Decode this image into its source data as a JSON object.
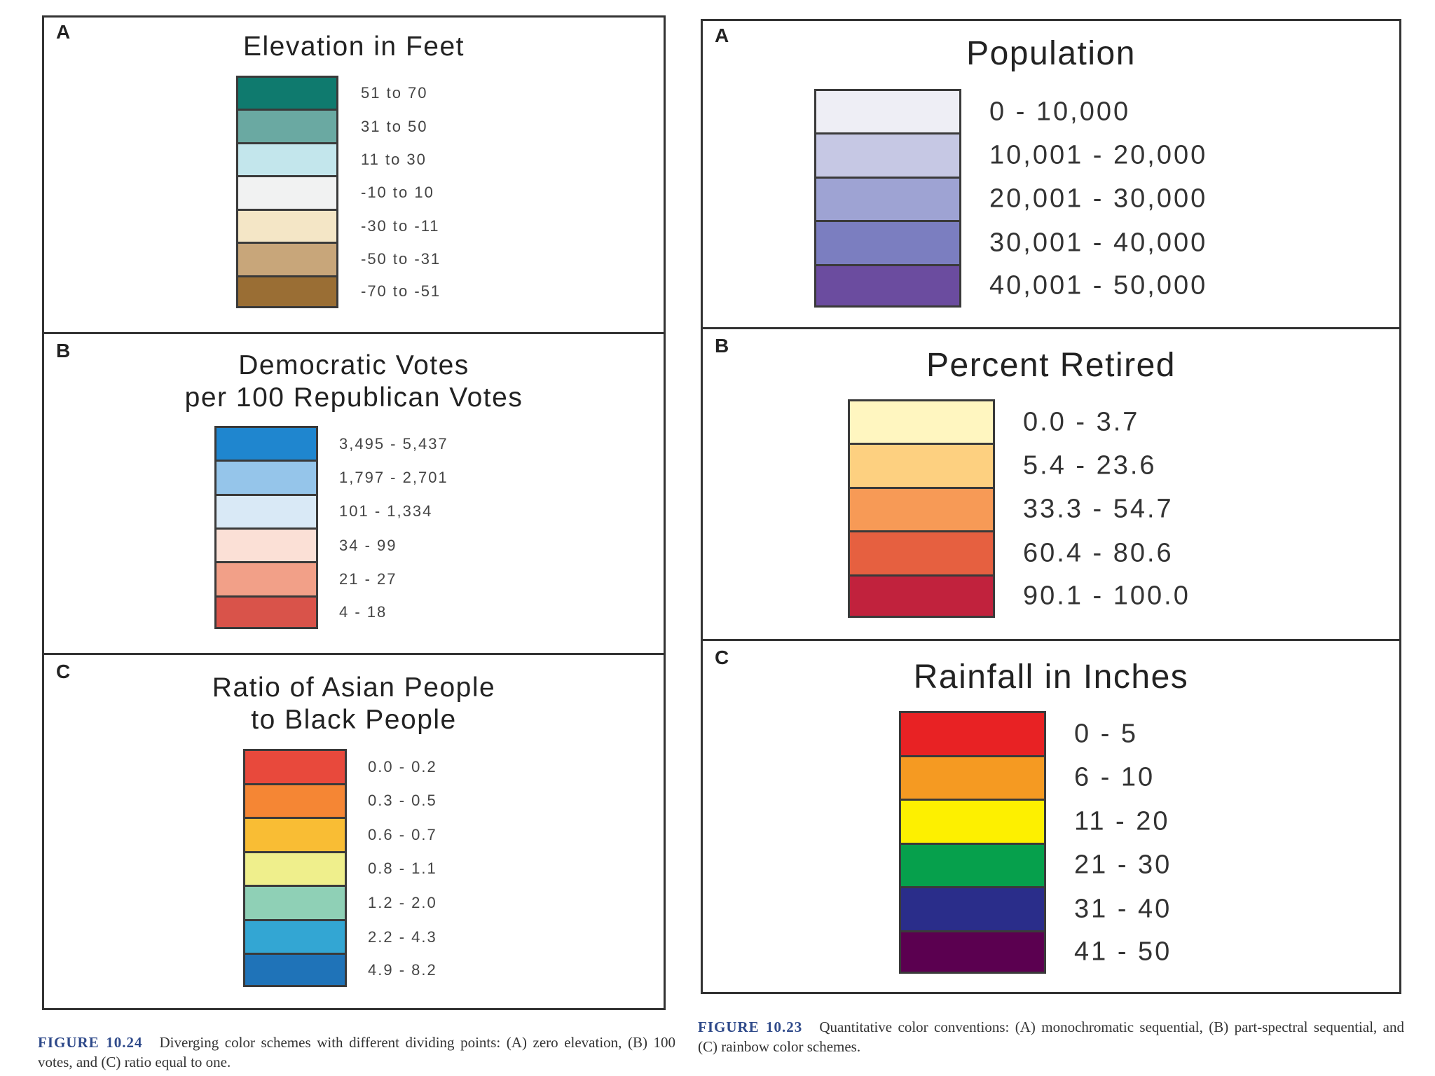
{
  "left_figure": {
    "panels": [
      {
        "letter": "A",
        "title": "Elevation in Feet",
        "classes": [
          {
            "label": "51 to 70",
            "color": "#0f7a6e"
          },
          {
            "label": "31 to 50",
            "color": "#6aa9a2"
          },
          {
            "label": "11 to 30",
            "color": "#c3e6ec"
          },
          {
            "label": "-10 to 10",
            "color": "#f1f2f2"
          },
          {
            "label": "-30 to -11",
            "color": "#f4e6c6"
          },
          {
            "label": "-50 to -31",
            "color": "#c8a67a"
          },
          {
            "label": "-70 to -51",
            "color": "#9a6e34"
          }
        ]
      },
      {
        "letter": "B",
        "title": "Democratic Votes\nper 100 Republican Votes",
        "classes": [
          {
            "label": "3,495 - 5,437",
            "color": "#1f86cf"
          },
          {
            "label": "1,797 - 2,701",
            "color": "#95c5ea"
          },
          {
            "label": "101 - 1,334",
            "color": "#d9e9f6"
          },
          {
            "label": "34 - 99",
            "color": "#fbe0d6"
          },
          {
            "label": "21 - 27",
            "color": "#f2a088"
          },
          {
            "label": "4 - 18",
            "color": "#d9534a"
          }
        ]
      },
      {
        "letter": "C",
        "title": "Ratio of Asian People\nto Black People",
        "classes": [
          {
            "label": "0.0 - 0.2",
            "color": "#e8493c"
          },
          {
            "label": "0.3 - 0.5",
            "color": "#f58634"
          },
          {
            "label": "0.6 - 0.7",
            "color": "#f9bd34"
          },
          {
            "label": "0.8 - 1.1",
            "color": "#efef8c"
          },
          {
            "label": "1.2 - 2.0",
            "color": "#8fd0b6"
          },
          {
            "label": "2.2 - 4.3",
            "color": "#33a6d3"
          },
          {
            "label": "4.9 - 8.2",
            "color": "#1f73b8"
          }
        ]
      }
    ],
    "caption": {
      "label": "FIGURE 10.24",
      "text": "Diverging color schemes with different dividing points: (A) zero elevation, (B) 100 votes, and (C) ratio equal to one."
    }
  },
  "right_figure": {
    "panels": [
      {
        "letter": "A",
        "title": "Population",
        "classes": [
          {
            "label": "0 - 10,000",
            "color": "#eeeef5"
          },
          {
            "label": "10,001 - 20,000",
            "color": "#c6c8e4"
          },
          {
            "label": "20,001 - 30,000",
            "color": "#9ea3d3"
          },
          {
            "label": "30,001 - 40,000",
            "color": "#7b7ec0"
          },
          {
            "label": "40,001 - 50,000",
            "color": "#6b4c9f"
          }
        ]
      },
      {
        "letter": "B",
        "title": "Percent Retired",
        "classes": [
          {
            "label": "0.0 - 3.7",
            "color": "#fff6c0"
          },
          {
            "label": "5.4 - 23.6",
            "color": "#fdd080"
          },
          {
            "label": "33.3 - 54.7",
            "color": "#f79a56"
          },
          {
            "label": "60.4 - 80.6",
            "color": "#e66040"
          },
          {
            "label": "90.1 - 100.0",
            "color": "#c1223d"
          }
        ]
      },
      {
        "letter": "C",
        "title": "Rainfall in Inches",
        "classes": [
          {
            "label": "0 - 5",
            "color": "#e82224"
          },
          {
            "label": "6 - 10",
            "color": "#f59a22"
          },
          {
            "label": "11 - 20",
            "color": "#fdf000"
          },
          {
            "label": "21 - 30",
            "color": "#06a04c"
          },
          {
            "label": "31 - 40",
            "color": "#2a2d8a"
          },
          {
            "label": "41 - 50",
            "color": "#5b0050"
          }
        ]
      }
    ],
    "caption": {
      "label": "FIGURE 10.23",
      "text": "Quantitative color conventions: (A) monochromatic sequential, (B) part-spectral sequential, and (C) rainbow color schemes."
    }
  }
}
